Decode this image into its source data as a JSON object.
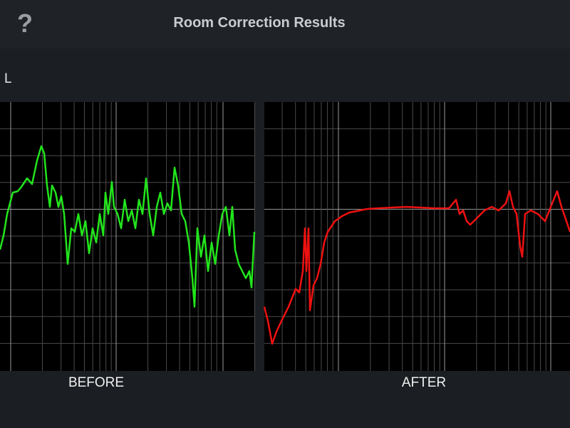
{
  "header": {
    "help_icon": "?",
    "title": "Room Correction Results"
  },
  "channel": "L",
  "panels": [
    {
      "label": "BEFORE"
    },
    {
      "label": "AFTER"
    }
  ]
}
